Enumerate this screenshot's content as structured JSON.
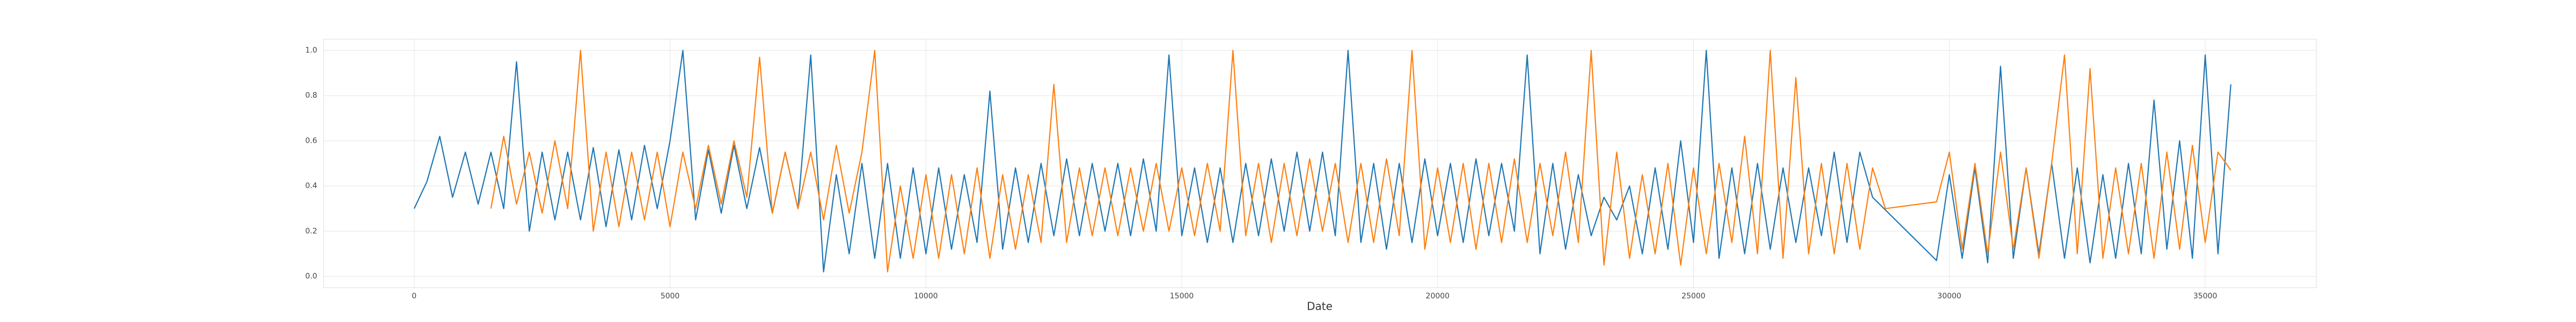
{
  "chart_data": {
    "type": "line",
    "xlabel": "Date",
    "xlim": [
      -1770,
      37170
    ],
    "ylim": [
      -0.05,
      1.05
    ],
    "xticks": [
      0,
      5000,
      10000,
      15000,
      20000,
      25000,
      30000,
      35000
    ],
    "yticks": [
      {
        "value": 0,
        "label": "0.0"
      },
      0.2,
      0.4,
      0.6,
      0.8,
      {
        "value": 1,
        "label": "1.0"
      }
    ],
    "grid": true,
    "series": [
      {
        "color": "#1f77b4",
        "x": [
          0,
          250,
          500,
          750,
          1000,
          1250,
          1500,
          1750,
          2000,
          2250,
          2500,
          2750,
          3000,
          3250,
          3500,
          3750,
          4000,
          4250,
          4500,
          4750,
          5000,
          5250,
          5500,
          5750,
          6000,
          6250,
          6500,
          6750,
          7000,
          7250,
          7500,
          7750,
          8000,
          8250,
          8500,
          8750,
          9000,
          9250,
          9500,
          9750,
          10000,
          10250,
          10500,
          10750,
          11000,
          11250,
          11500,
          11750,
          12000,
          12250,
          12500,
          12750,
          13000,
          13250,
          13500,
          13750,
          14000,
          14250,
          14500,
          14750,
          15000,
          15250,
          15500,
          15750,
          16000,
          16250,
          16500,
          16750,
          17000,
          17250,
          17500,
          17750,
          18000,
          18250,
          18500,
          18750,
          19000,
          19250,
          19500,
          19750,
          20000,
          20250,
          20500,
          20750,
          21000,
          21250,
          21500,
          21750,
          22000,
          22250,
          22500,
          22750,
          23000,
          23250,
          23500,
          23750,
          24000,
          24250,
          24500,
          24750,
          25000,
          25250,
          25500,
          25750,
          26000,
          26250,
          26500,
          26750,
          27000,
          27250,
          27500,
          27750,
          28000,
          28250,
          28500,
          29750,
          30000,
          30250,
          30500,
          30750,
          31000,
          31250,
          31500,
          31750,
          32000,
          32250,
          32500,
          32750,
          33000,
          33250,
          33500,
          33750,
          34000,
          34250,
          34500,
          34750,
          35000,
          35250,
          35500
        ],
        "values": [
          0.3,
          0.42,
          0.62,
          0.35,
          0.55,
          0.32,
          0.55,
          0.3,
          0.95,
          0.2,
          0.55,
          0.25,
          0.55,
          0.25,
          0.57,
          0.22,
          0.56,
          0.25,
          0.58,
          0.3,
          0.6,
          1.0,
          0.25,
          0.56,
          0.28,
          0.58,
          0.3,
          0.57,
          0.28,
          0.55,
          0.3,
          0.98,
          0.02,
          0.45,
          0.1,
          0.5,
          0.08,
          0.5,
          0.08,
          0.48,
          0.1,
          0.48,
          0.12,
          0.45,
          0.15,
          0.82,
          0.12,
          0.48,
          0.15,
          0.5,
          0.18,
          0.52,
          0.18,
          0.5,
          0.2,
          0.5,
          0.18,
          0.52,
          0.2,
          0.98,
          0.18,
          0.48,
          0.15,
          0.48,
          0.15,
          0.5,
          0.18,
          0.52,
          0.2,
          0.55,
          0.2,
          0.55,
          0.18,
          1.0,
          0.15,
          0.5,
          0.12,
          0.5,
          0.15,
          0.52,
          0.18,
          0.5,
          0.15,
          0.52,
          0.18,
          0.5,
          0.2,
          0.98,
          0.1,
          0.5,
          0.12,
          0.45,
          0.18,
          0.35,
          0.25,
          0.4,
          0.1,
          0.48,
          0.12,
          0.6,
          0.15,
          1.0,
          0.08,
          0.48,
          0.1,
          0.5,
          0.12,
          0.48,
          0.15,
          0.48,
          0.18,
          0.55,
          0.15,
          0.55,
          0.35,
          0.07,
          0.45,
          0.08,
          0.48,
          0.06,
          0.93,
          0.08,
          0.48,
          0.1,
          0.5,
          0.08,
          0.48,
          0.06,
          0.45,
          0.08,
          0.5,
          0.1,
          0.78,
          0.12,
          0.6,
          0.08,
          0.98,
          0.1,
          0.85
        ]
      },
      {
        "color": "#ff7f0e",
        "x": [
          1500,
          1750,
          2000,
          2250,
          2500,
          2750,
          3000,
          3250,
          3500,
          3750,
          4000,
          4250,
          4500,
          4750,
          5000,
          5250,
          5500,
          5750,
          6000,
          6250,
          6500,
          6750,
          7000,
          7250,
          7500,
          7750,
          8000,
          8250,
          8500,
          8750,
          9000,
          9250,
          9500,
          9750,
          10000,
          10250,
          10500,
          10750,
          11000,
          11250,
          11500,
          11750,
          12000,
          12250,
          12500,
          12750,
          13000,
          13250,
          13500,
          13750,
          14000,
          14250,
          14500,
          14750,
          15000,
          15250,
          15500,
          15750,
          16000,
          16250,
          16500,
          16750,
          17000,
          17250,
          17500,
          17750,
          18000,
          18250,
          18500,
          18750,
          19000,
          19250,
          19500,
          19750,
          20000,
          20250,
          20500,
          20750,
          21000,
          21250,
          21500,
          21750,
          22000,
          22250,
          22500,
          22750,
          23000,
          23250,
          23500,
          23750,
          24000,
          24250,
          24500,
          24750,
          25000,
          25250,
          25500,
          25750,
          26000,
          26250,
          26500,
          26750,
          27000,
          27250,
          27500,
          27750,
          28000,
          28250,
          28500,
          28750,
          29750,
          30000,
          30250,
          30500,
          30750,
          31000,
          31250,
          31500,
          31750,
          32000,
          32250,
          32500,
          32750,
          33000,
          33250,
          33500,
          33750,
          34000,
          34250,
          34500,
          34750,
          35000,
          35250,
          35500
        ],
        "values": [
          0.3,
          0.62,
          0.32,
          0.55,
          0.28,
          0.6,
          0.3,
          1.0,
          0.2,
          0.55,
          0.22,
          0.55,
          0.25,
          0.55,
          0.22,
          0.55,
          0.3,
          0.58,
          0.32,
          0.6,
          0.35,
          0.97,
          0.28,
          0.55,
          0.3,
          0.55,
          0.25,
          0.58,
          0.28,
          0.55,
          1.0,
          0.02,
          0.4,
          0.08,
          0.45,
          0.08,
          0.45,
          0.1,
          0.48,
          0.08,
          0.45,
          0.12,
          0.45,
          0.15,
          0.85,
          0.15,
          0.48,
          0.18,
          0.48,
          0.18,
          0.48,
          0.2,
          0.5,
          0.2,
          0.48,
          0.18,
          0.5,
          0.2,
          1.0,
          0.18,
          0.5,
          0.15,
          0.5,
          0.18,
          0.52,
          0.2,
          0.5,
          0.15,
          0.5,
          0.15,
          0.52,
          0.18,
          1.0,
          0.12,
          0.48,
          0.15,
          0.5,
          0.12,
          0.5,
          0.15,
          0.52,
          0.15,
          0.5,
          0.18,
          0.55,
          0.15,
          1.0,
          0.05,
          0.55,
          0.08,
          0.45,
          0.1,
          0.5,
          0.05,
          0.48,
          0.1,
          0.5,
          0.15,
          0.62,
          0.1,
          1.0,
          0.08,
          0.88,
          0.1,
          0.5,
          0.1,
          0.5,
          0.12,
          0.48,
          0.3,
          0.33,
          0.55,
          0.12,
          0.5,
          0.1,
          0.55,
          0.12,
          0.48,
          0.08,
          0.5,
          0.98,
          0.1,
          0.92,
          0.08,
          0.48,
          0.1,
          0.5,
          0.08,
          0.55,
          0.12,
          0.58,
          0.15,
          0.55,
          0.47
        ]
      }
    ]
  }
}
